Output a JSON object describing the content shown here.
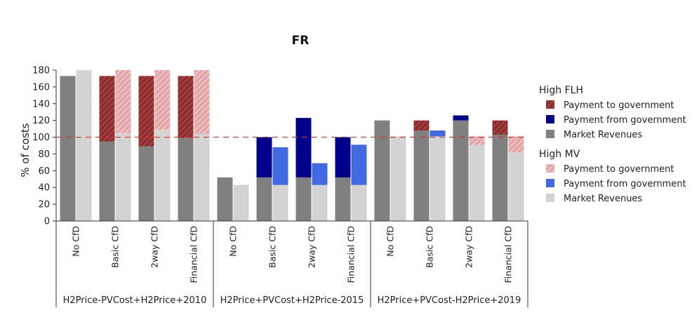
{
  "chart_data": {
    "type": "bar",
    "title": "FR",
    "ylabel": "% of costs",
    "xlabel": "",
    "ylim": [
      0,
      180
    ],
    "yticks": [
      0,
      20,
      40,
      60,
      80,
      100,
      120,
      140,
      160,
      180
    ],
    "reference_line": {
      "y": 100,
      "color": "#e03030",
      "style": "dashed"
    },
    "categories": [
      "No CfD",
      "Basic CfD",
      "2way CfD",
      "Financial CfD"
    ],
    "groups": [
      {
        "label": "H2Price-PVCost+H2Price+2010",
        "bars": [
          {
            "category": "No CfD",
            "high_flh": {
              "market_revenues": 173,
              "payment_from_government": 0,
              "payment_to_government": 0
            },
            "high_mv": {
              "market_revenues": 180,
              "payment_from_government": 0,
              "payment_to_government": 0
            }
          },
          {
            "category": "Basic CfD",
            "high_flh": {
              "market_revenues": 95,
              "payment_from_government": 0,
              "payment_to_government": 78
            },
            "high_mv": {
              "market_revenues": 105,
              "payment_from_government": 0,
              "payment_to_government": 75
            }
          },
          {
            "category": "2way CfD",
            "high_flh": {
              "market_revenues": 89,
              "payment_from_government": 0,
              "payment_to_government": 84
            },
            "high_mv": {
              "market_revenues": 109,
              "payment_from_government": 0,
              "payment_to_government": 71
            }
          },
          {
            "category": "Financial CfD",
            "high_flh": {
              "market_revenues": 99,
              "payment_from_government": 0,
              "payment_to_government": 74
            },
            "high_mv": {
              "market_revenues": 104,
              "payment_from_government": 0,
              "payment_to_government": 76
            }
          }
        ]
      },
      {
        "label": "H2Price+PVCost+H2Price-2015",
        "bars": [
          {
            "category": "No CfD",
            "high_flh": {
              "market_revenues": 52,
              "payment_from_government": 0,
              "payment_to_government": 0
            },
            "high_mv": {
              "market_revenues": 43,
              "payment_from_government": 0,
              "payment_to_government": 0
            }
          },
          {
            "category": "Basic CfD",
            "high_flh": {
              "market_revenues": 52,
              "payment_from_government": 48,
              "payment_to_government": 0
            },
            "high_mv": {
              "market_revenues": 43,
              "payment_from_government": 45,
              "payment_to_government": 0
            }
          },
          {
            "category": "2way CfD",
            "high_flh": {
              "market_revenues": 52,
              "payment_from_government": 71,
              "payment_to_government": 0
            },
            "high_mv": {
              "market_revenues": 43,
              "payment_from_government": 26,
              "payment_to_government": 0
            }
          },
          {
            "category": "Financial CfD",
            "high_flh": {
              "market_revenues": 52,
              "payment_from_government": 48,
              "payment_to_government": 0
            },
            "high_mv": {
              "market_revenues": 43,
              "payment_from_government": 48,
              "payment_to_government": 0
            }
          }
        ]
      },
      {
        "label": "H2Price+PVCost-H2Price+2019",
        "bars": [
          {
            "category": "No CfD",
            "high_flh": {
              "market_revenues": 120,
              "payment_from_government": 0,
              "payment_to_government": 0
            },
            "high_mv": {
              "market_revenues": 101,
              "payment_from_government": 0,
              "payment_to_government": 0
            }
          },
          {
            "category": "Basic CfD",
            "high_flh": {
              "market_revenues": 108,
              "payment_from_government": 0,
              "payment_to_government": 12
            },
            "high_mv": {
              "market_revenues": 101,
              "payment_from_government": 7,
              "payment_to_government": 0
            }
          },
          {
            "category": "2way CfD",
            "high_flh": {
              "market_revenues": 120,
              "payment_from_government": 6,
              "payment_to_government": 0
            },
            "high_mv": {
              "market_revenues": 91,
              "payment_from_government": 0,
              "payment_to_government": 10
            }
          },
          {
            "category": "Financial CfD",
            "high_flh": {
              "market_revenues": 103,
              "payment_from_government": 0,
              "payment_to_government": 17
            },
            "high_mv": {
              "market_revenues": 82,
              "payment_from_government": 0,
              "payment_to_government": 19
            }
          }
        ]
      }
    ],
    "legend": {
      "placement": "right",
      "sections": [
        {
          "title": "High FLH",
          "key": "high_flh",
          "items": [
            {
              "key": "payment_to_government",
              "label": "Payment to government",
              "color": "#a03a3a",
              "hatch": true
            },
            {
              "key": "payment_from_government",
              "label": "Payment from government",
              "color": "#00008b",
              "hatch": false
            },
            {
              "key": "market_revenues",
              "label": "Market Revenues",
              "color": "#808080",
              "hatch": false
            }
          ]
        },
        {
          "title": "High MV",
          "key": "high_mv",
          "items": [
            {
              "key": "payment_to_government",
              "label": "Payment to government",
              "color": "#e3a7a9",
              "hatch": true
            },
            {
              "key": "payment_from_government",
              "label": "Payment from government",
              "color": "#4169e1",
              "hatch": false
            },
            {
              "key": "market_revenues",
              "label": "Market Revenues",
              "color": "#d3d3d3",
              "hatch": false
            }
          ]
        }
      ]
    }
  }
}
